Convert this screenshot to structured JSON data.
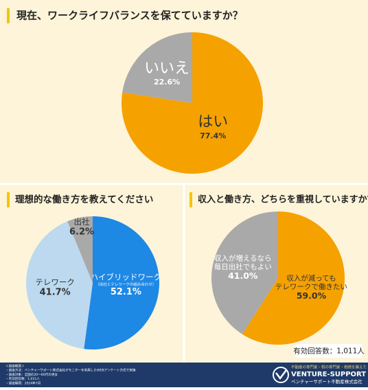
{
  "chart_data": [
    {
      "type": "pie",
      "title": "現在、ワークライフバランスを保てていますか？",
      "categories": [
        [
          "はい"
        ],
        [
          "いいえ"
        ]
      ],
      "values": [
        77.4,
        22.6
      ],
      "value_labels": [
        "77.4%",
        "22.6%"
      ],
      "colors": [
        "#f5a100",
        "#a9a9a9"
      ],
      "label_colors": [
        "#333333",
        "#ffffff"
      ]
    },
    {
      "type": "pie",
      "title": "理想的な働き方を教えてください",
      "categories": [
        [
          "ハイブリッドワーク"
        ],
        [
          "テレワーク"
        ],
        [
          "出社"
        ]
      ],
      "sublabels": [
        "（出社とテレワークの組み合わせ）",
        null,
        null
      ],
      "values": [
        52.1,
        41.7,
        6.2
      ],
      "value_labels": [
        "52.1%",
        "41.7%",
        "6.2%"
      ],
      "colors": [
        "#1e88e5",
        "#bcd9ef",
        "#a9a9a9"
      ],
      "label_colors": [
        "#ffffff",
        "#333333",
        "#333333"
      ]
    },
    {
      "type": "pie",
      "title": "収入と働き方、どちらを重視していますか？",
      "categories": [
        [
          "収入が減っても",
          "テレワークで働きたい"
        ],
        [
          "収入が増えるなら",
          "毎日出社でもよい"
        ]
      ],
      "values": [
        59.0,
        41.0
      ],
      "value_labels": [
        "59.0%",
        "41.0%"
      ],
      "colors": [
        "#f5a100",
        "#a9a9a9"
      ],
      "label_colors": [
        "#333333",
        "#ffffff"
      ]
    }
  ],
  "respondents": "有効回答数：1,011人",
  "footer": {
    "notes": [
      "＜調査概要＞",
      "・調査方法：ベンチャーサポート株式会社がモニターを利用したWEBアンケート方式で実施",
      "・調査対象：全国の20〜60代の男女",
      "・有効回答数：1,011人",
      "・調査期間：2024年7月"
    ],
    "tagline": "不動産の専門家・税の専門家・相続を備えた",
    "brand": "VENTURE-SUPPORT",
    "company": "ベンチャーサポート不動産株式会社"
  }
}
